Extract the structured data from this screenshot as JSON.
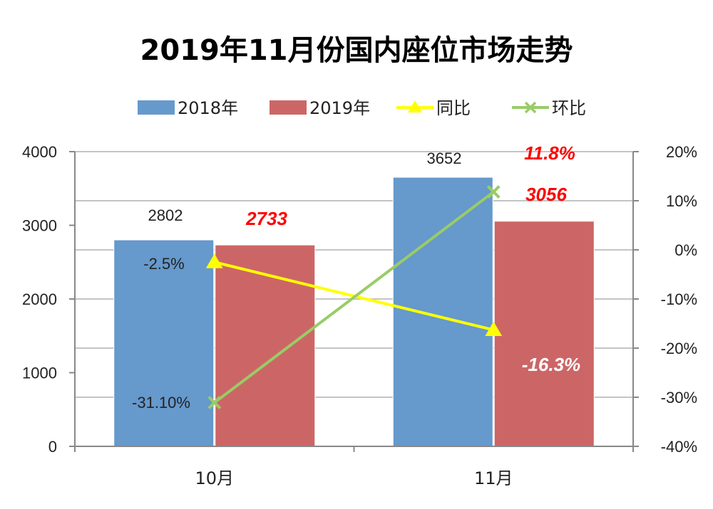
{
  "chart_data": {
    "type": "bar",
    "title": "2019年11月份国内座位市场走势",
    "categories": [
      "10月",
      "11月"
    ],
    "series": [
      {
        "name": "2018年",
        "kind": "bar",
        "axis": "left",
        "color": "#6699cc",
        "values": [
          2802,
          3652
        ],
        "labels": [
          "2802",
          "3652"
        ]
      },
      {
        "name": "2019年",
        "kind": "bar",
        "axis": "left",
        "color": "#cc6666",
        "values": [
          2733,
          3056
        ],
        "labels": [
          "2733",
          "3056"
        ]
      },
      {
        "name": "同比",
        "kind": "line",
        "axis": "right",
        "marker": "triangle",
        "color": "#ffff00",
        "values": [
          -2.5,
          -16.3
        ],
        "labels": [
          "-2.5%",
          "-16.3%"
        ]
      },
      {
        "name": "环比",
        "kind": "line",
        "axis": "right",
        "marker": "x",
        "color": "#99cc66",
        "values": [
          -31.1,
          11.8
        ],
        "labels": [
          "-31.10%",
          "11.8%"
        ]
      }
    ],
    "ylim": [
      0,
      4000
    ],
    "yticks": [
      "0",
      "1000",
      "2000",
      "3000",
      "4000"
    ],
    "y2lim": [
      -40,
      20
    ],
    "y2ticks": [
      "-40%",
      "-30%",
      "-20%",
      "-10%",
      "0%",
      "10%",
      "20%"
    ],
    "grid": true,
    "legend_position": "top"
  }
}
